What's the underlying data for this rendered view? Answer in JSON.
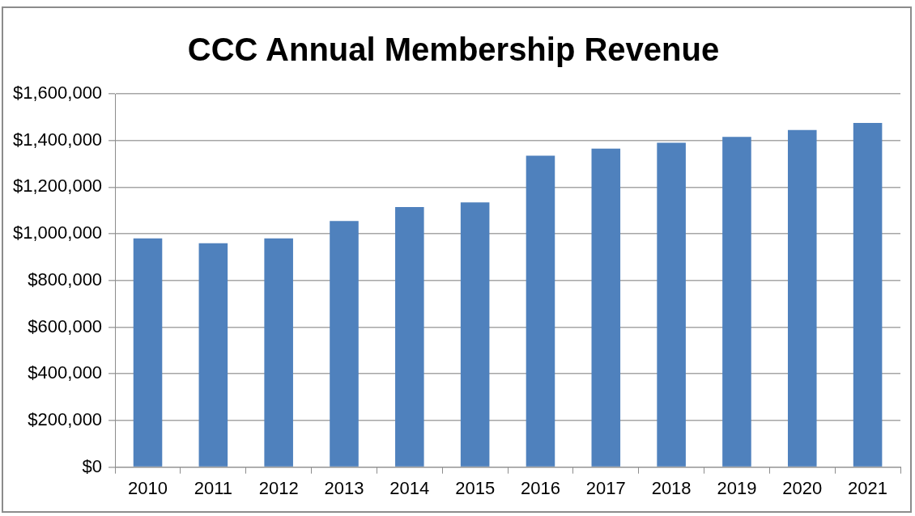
{
  "chart_data": {
    "type": "bar",
    "title": "CCC Annual Membership Revenue",
    "categories": [
      "2010",
      "2011",
      "2012",
      "2013",
      "2014",
      "2015",
      "2016",
      "2017",
      "2018",
      "2019",
      "2020",
      "2021"
    ],
    "values": [
      980000,
      960000,
      980000,
      1055000,
      1115000,
      1135000,
      1335000,
      1365000,
      1390000,
      1415000,
      1445000,
      1475000
    ],
    "color": "#4f81bd",
    "ylim": [
      0,
      1600000
    ],
    "yticks": [
      {
        "value": 0,
        "label": "$0"
      },
      {
        "value": 200000,
        "label": "$200,000"
      },
      {
        "value": 400000,
        "label": "$400,000"
      },
      {
        "value": 600000,
        "label": "$600,000"
      },
      {
        "value": 800000,
        "label": "$800,000"
      },
      {
        "value": 1000000,
        "label": "$1,000,000"
      },
      {
        "value": 1200000,
        "label": "$1,200,000"
      },
      {
        "value": 1400000,
        "label": "$1,400,000"
      },
      {
        "value": 1600000,
        "label": "$1,600,000"
      }
    ],
    "grid": "y",
    "legend": false
  }
}
